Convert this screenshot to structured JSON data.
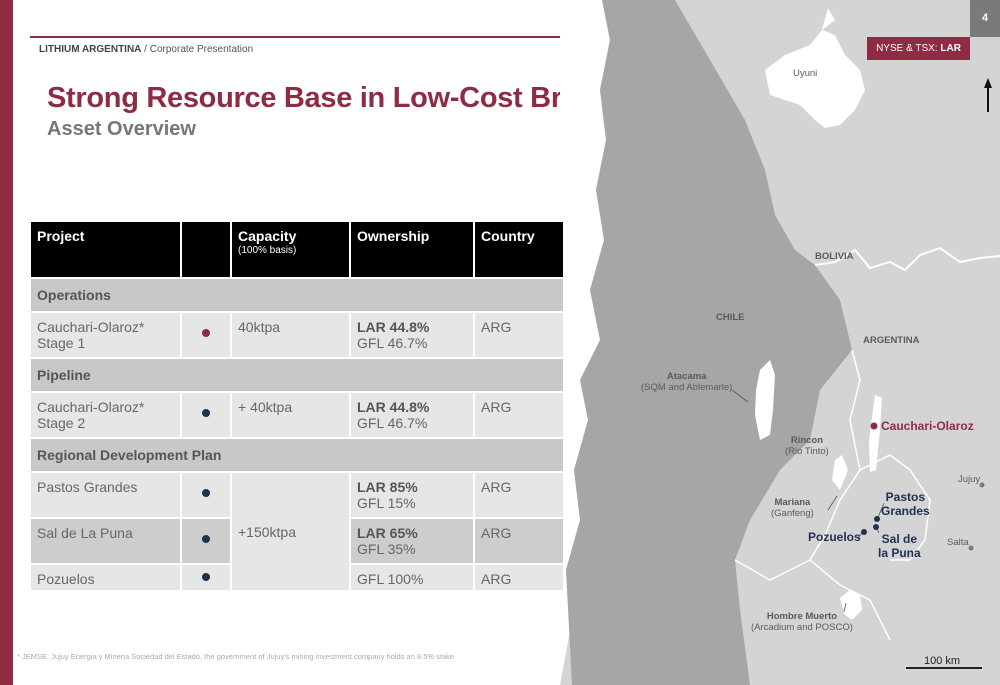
{
  "header": {
    "company": "LITHIUM ARGENTINA",
    "separator": " / ",
    "doc": "Corporate Presentation",
    "page_number": "4",
    "ticker_prefix": "NYSE & TSX: ",
    "ticker_symbol": "LAR"
  },
  "title": "Strong Resource Base in Low-Cost Brine Assets",
  "subtitle": "Asset Overview",
  "table": {
    "headers": {
      "project": "Project",
      "capacity": "Capacity",
      "capacity_sub": "(100% basis)",
      "ownership": "Ownership",
      "country": "Country"
    },
    "sections": {
      "operations": "Operations",
      "pipeline": "Pipeline",
      "regional": "Regional Development Plan"
    },
    "rows": [
      {
        "project": "Cauchari-Olaroz* Stage 1",
        "capacity": "40ktpa",
        "own1": "LAR 44.8%",
        "own2": "GFL 46.7%",
        "country": "ARG",
        "dot": "#8e2c43"
      },
      {
        "project": "Cauchari-Olaroz* Stage 2",
        "capacity": "+ 40ktpa",
        "own1": "LAR 44.8%",
        "own2": "GFL 46.7%",
        "country": "ARG",
        "dot": "#1f3050"
      },
      {
        "project": "Pastos Grandes",
        "capacity": "+150ktpa",
        "own1": "LAR 85%",
        "own2": "GFL 15%",
        "country": "ARG",
        "dot": "#1f3050"
      },
      {
        "project": "Sal de La Puna",
        "own1": "LAR 65%",
        "own2": "GFL 35%",
        "country": "ARG",
        "dot": "#1f3050"
      },
      {
        "project": "Pozuelos",
        "own2": "GFL 100%",
        "country": "ARG",
        "dot": "#1f3050"
      }
    ]
  },
  "footnote": "* JEMSE, Jujuy Energia y Mineria Sociedad del Estado, the government of Jujuy's mining investment company holds an 8.5% stake",
  "map": {
    "uyuni": "Uyuni",
    "bolivia": "BOLIVIA",
    "chile": "CHILE",
    "argentina": "ARGENTINA",
    "atacama": "Atacama",
    "atacama_sub": "(SQM and Ablemarle)",
    "cauchari": "Cauchari-Olaroz",
    "rincon": "Rincon",
    "rincon_sub": "(Rio Tinto)",
    "jujuy": "Jujuy",
    "pastos_1": "Pastos",
    "pastos_2": "Grandes",
    "mariana": "Mariana",
    "mariana_sub": "(Ganfeng)",
    "pozuelos": "Pozuelos",
    "saldela_1": "Sal de",
    "saldela_2": "la Puna",
    "salta": "Salta",
    "hombre": "Hombre Muerto",
    "hombre_sub": "(Arcadium and POSCO)",
    "scale": "100 km"
  },
  "colors": {
    "brand": "#8e2c43",
    "navy": "#1f3050",
    "chile_gray": "#a6a6a6",
    "neighbor_gray": "#d4d4d4",
    "salar_white": "#ffffff"
  }
}
